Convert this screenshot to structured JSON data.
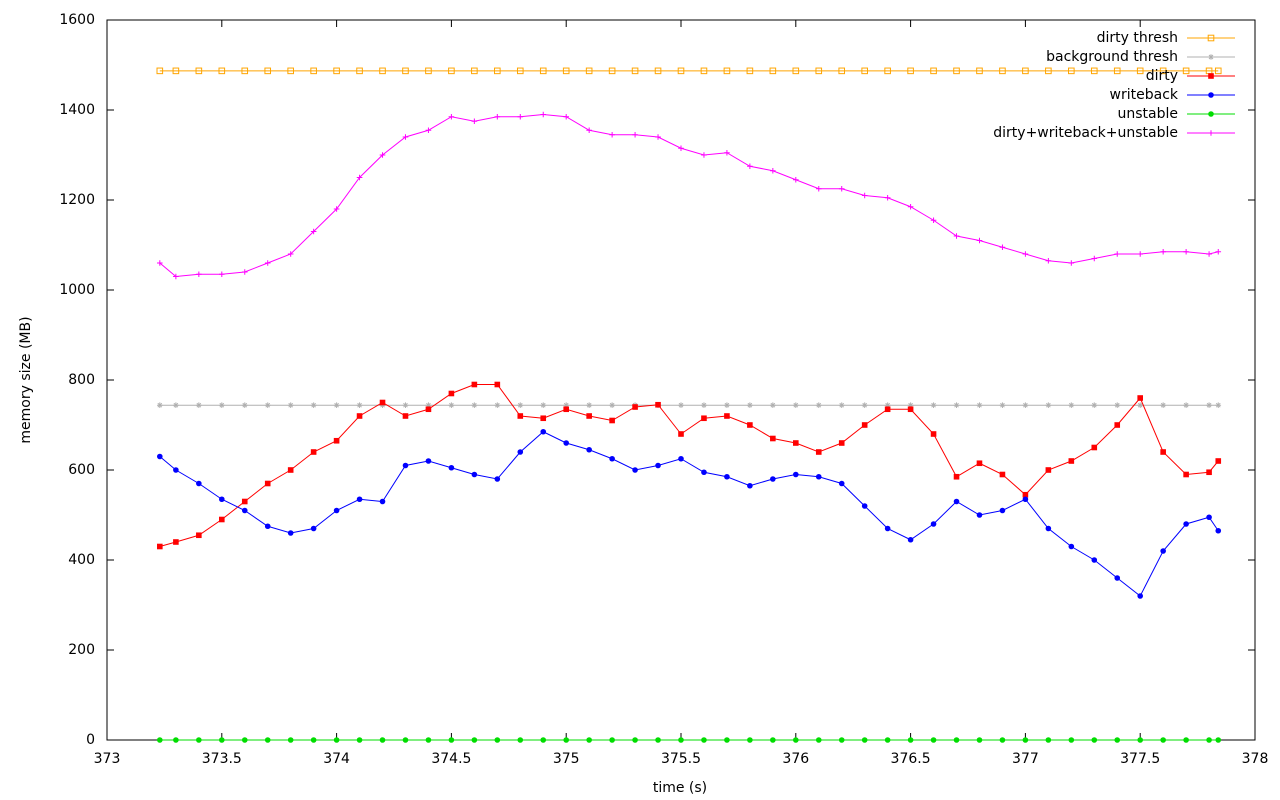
{
  "chart_data": {
    "type": "line",
    "xlabel": "time (s)",
    "ylabel": "memory size (MB)",
    "xlim": [
      373,
      378
    ],
    "xticks": [
      373,
      373.5,
      374,
      374.5,
      375,
      375.5,
      376,
      376.5,
      377,
      377.5,
      378
    ],
    "ylim": [
      0,
      1600
    ],
    "yticks": [
      0,
      200,
      400,
      600,
      800,
      1000,
      1200,
      1400,
      1600
    ],
    "grid": false,
    "legend": "top-right",
    "x": [
      373.23,
      373.3,
      373.4,
      373.5,
      373.6,
      373.7,
      373.8,
      373.9,
      374.0,
      374.1,
      374.2,
      374.3,
      374.4,
      374.5,
      374.6,
      374.7,
      374.8,
      374.9,
      375.0,
      375.1,
      375.2,
      375.3,
      375.4,
      375.5,
      375.6,
      375.7,
      375.8,
      375.9,
      376.0,
      376.1,
      376.2,
      376.3,
      376.4,
      376.5,
      376.6,
      376.7,
      376.8,
      376.9,
      377.0,
      377.1,
      377.2,
      377.3,
      377.4,
      377.5,
      377.6,
      377.7,
      377.8,
      377.84
    ],
    "series": [
      {
        "name": "dirty thresh",
        "color": "#ffa500",
        "marker": "open-square",
        "values": [
          1487,
          1487,
          1487,
          1487,
          1487,
          1487,
          1487,
          1487,
          1487,
          1487,
          1487,
          1487,
          1487,
          1487,
          1487,
          1487,
          1487,
          1487,
          1487,
          1487,
          1487,
          1487,
          1487,
          1487,
          1487,
          1487,
          1487,
          1487,
          1487,
          1487,
          1487,
          1487,
          1487,
          1487,
          1487,
          1487,
          1487,
          1487,
          1487,
          1487,
          1487,
          1487,
          1487,
          1487,
          1487,
          1487,
          1487,
          1487
        ]
      },
      {
        "name": "background thresh",
        "color": "#b0b0b0",
        "marker": "asterisk",
        "values": [
          744,
          744,
          744,
          744,
          744,
          744,
          744,
          744,
          744,
          744,
          744,
          744,
          744,
          744,
          744,
          744,
          744,
          744,
          744,
          744,
          744,
          744,
          744,
          744,
          744,
          744,
          744,
          744,
          744,
          744,
          744,
          744,
          744,
          744,
          744,
          744,
          744,
          744,
          744,
          744,
          744,
          744,
          744,
          744,
          744,
          744,
          744,
          744
        ]
      },
      {
        "name": "dirty",
        "color": "#ff0000",
        "marker": "square",
        "values": [
          430,
          440,
          455,
          490,
          530,
          570,
          600,
          640,
          665,
          720,
          750,
          720,
          735,
          770,
          790,
          790,
          720,
          715,
          735,
          720,
          710,
          740,
          745,
          680,
          715,
          720,
          700,
          670,
          660,
          640,
          660,
          700,
          735,
          735,
          680,
          585,
          615,
          590,
          545,
          600,
          620,
          650,
          700,
          760,
          640,
          590,
          595,
          620
        ]
      },
      {
        "name": "writeback",
        "color": "#0000ff",
        "marker": "circle",
        "values": [
          630,
          600,
          570,
          535,
          510,
          475,
          460,
          470,
          510,
          535,
          530,
          610,
          620,
          605,
          590,
          580,
          640,
          685,
          660,
          645,
          625,
          600,
          610,
          625,
          595,
          585,
          565,
          580,
          590,
          585,
          570,
          520,
          470,
          445,
          480,
          530,
          500,
          510,
          535,
          470,
          430,
          400,
          360,
          320,
          420,
          480,
          495,
          465
        ]
      },
      {
        "name": "unstable",
        "color": "#00dd00",
        "marker": "circle",
        "values": [
          0,
          0,
          0,
          0,
          0,
          0,
          0,
          0,
          0,
          0,
          0,
          0,
          0,
          0,
          0,
          0,
          0,
          0,
          0,
          0,
          0,
          0,
          0,
          0,
          0,
          0,
          0,
          0,
          0,
          0,
          0,
          0,
          0,
          0,
          0,
          0,
          0,
          0,
          0,
          0,
          0,
          0,
          0,
          0,
          0,
          0,
          0,
          0
        ]
      },
      {
        "name": "dirty+writeback+unstable",
        "color": "#ff00ff",
        "marker": "plus",
        "values": [
          1060,
          1030,
          1035,
          1035,
          1040,
          1060,
          1080,
          1130,
          1180,
          1250,
          1300,
          1340,
          1355,
          1385,
          1375,
          1385,
          1385,
          1390,
          1385,
          1355,
          1345,
          1345,
          1340,
          1315,
          1300,
          1305,
          1275,
          1265,
          1245,
          1225,
          1225,
          1210,
          1205,
          1185,
          1155,
          1120,
          1110,
          1095,
          1080,
          1065,
          1060,
          1070,
          1080,
          1080,
          1085,
          1085,
          1080,
          1085
        ]
      }
    ]
  }
}
